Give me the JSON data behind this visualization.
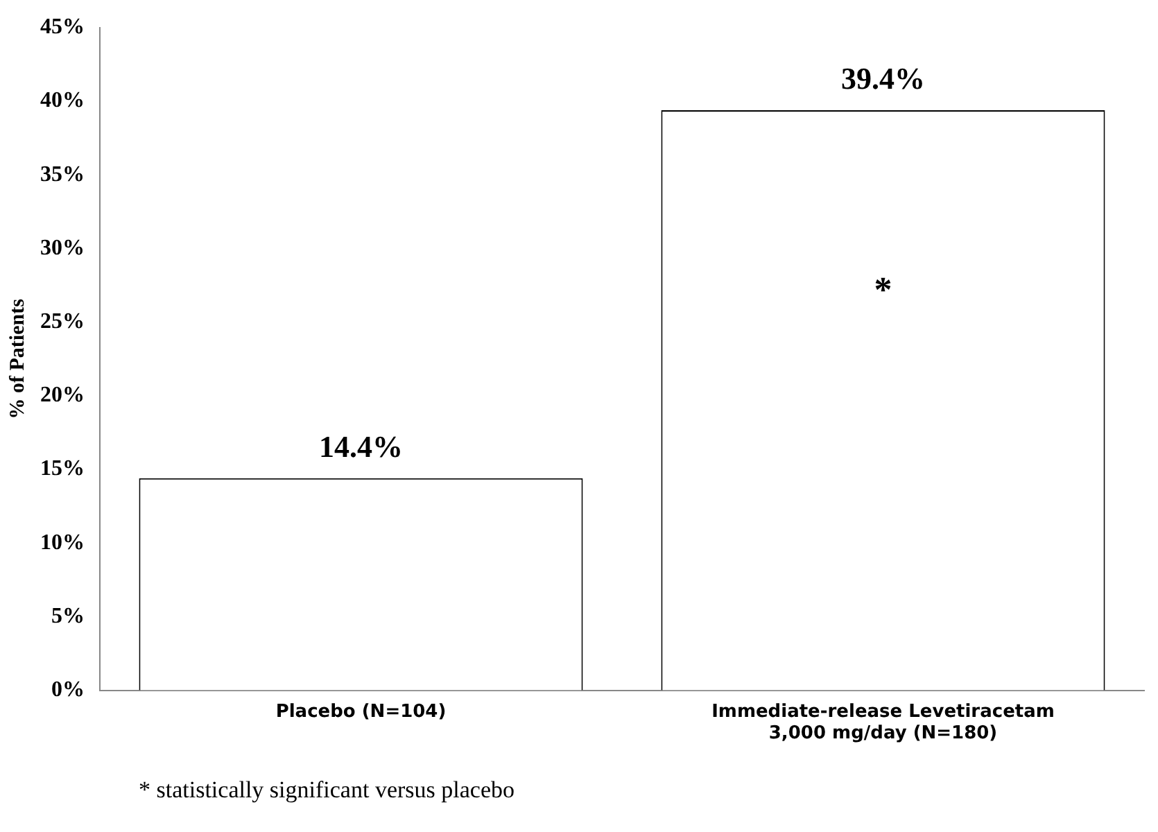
{
  "chart_data": {
    "type": "bar",
    "ylabel": "% of Patients",
    "categories": [
      "Placebo (N=104)",
      "Immediate-release Levetiracetam 3,000 mg/day (N=180)"
    ],
    "values": [
      14.4,
      39.4
    ],
    "color": "#ffffff",
    "value_labels": [
      "14.4%",
      "39.4%"
    ],
    "ylim": [
      0,
      45
    ],
    "yticks": [
      {
        "value": 0,
        "label": "0%"
      },
      {
        "value": 5,
        "label": "5%"
      },
      {
        "value": 10,
        "label": "10%"
      },
      {
        "value": 15,
        "label": "15%"
      },
      {
        "value": 20,
        "label": "20%"
      },
      {
        "value": 25,
        "label": "25%"
      },
      {
        "value": 30,
        "label": "30%"
      },
      {
        "value": 35,
        "label": "35%"
      },
      {
        "value": 40,
        "label": "40%"
      },
      {
        "value": 45,
        "label": "45%"
      }
    ],
    "grid": false,
    "legend": false,
    "annotations": [
      "*",
      "* statistically significant versus placebo"
    ]
  }
}
